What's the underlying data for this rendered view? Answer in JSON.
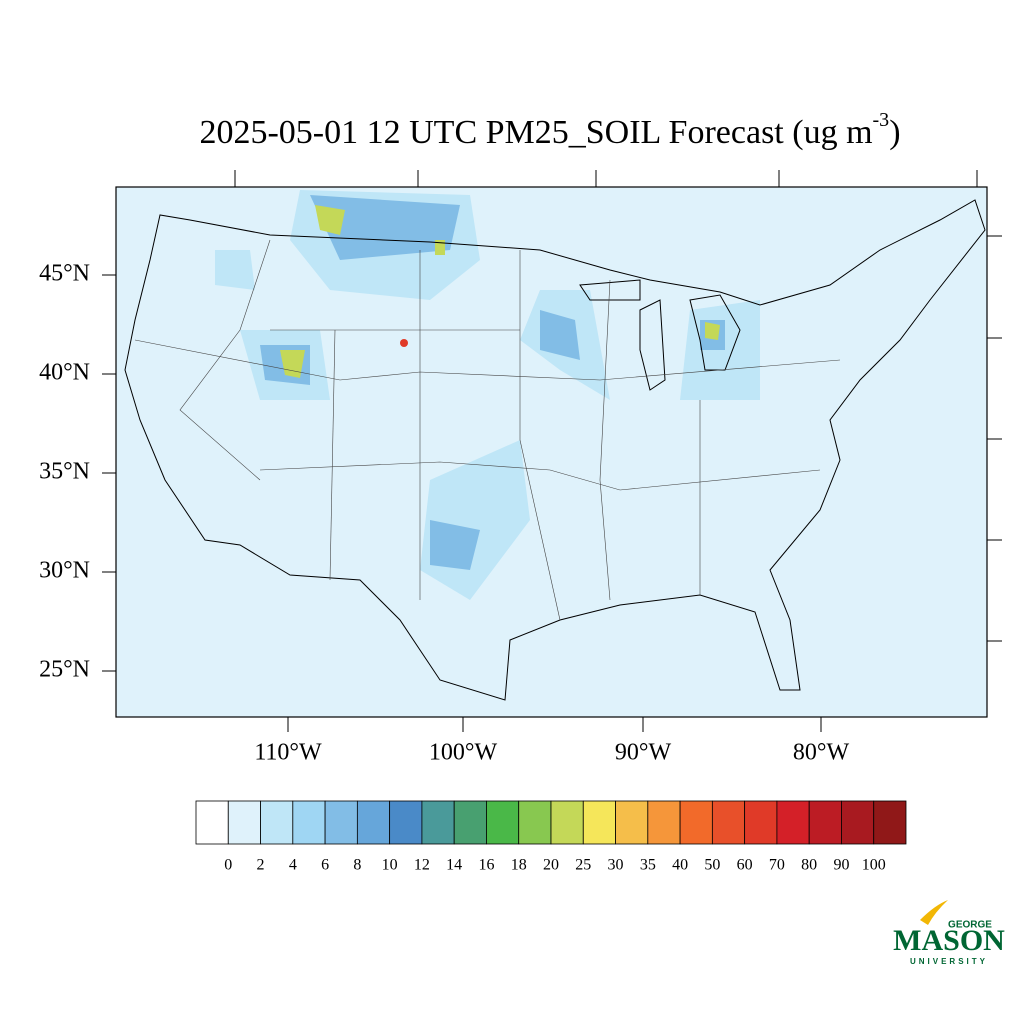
{
  "title": {
    "main": "2025-05-01 12 UTC PM25_SOIL Forecast (ug m",
    "superscript": "-3",
    "close": ")"
  },
  "lat_labels": [
    "45°N",
    "40°N",
    "35°N",
    "30°N",
    "25°N"
  ],
  "lon_labels": [
    "110°W",
    "100°W",
    "90°W",
    "80°W"
  ],
  "colorbar": {
    "labels": [
      "0",
      "2",
      "4",
      "6",
      "8",
      "10",
      "12",
      "14",
      "16",
      "18",
      "20",
      "25",
      "30",
      "35",
      "40",
      "50",
      "60",
      "70",
      "80",
      "90",
      "100"
    ],
    "colors": [
      "#ffffff",
      "#dff2fb",
      "#bfe6f7",
      "#9fd6f3",
      "#82bde6",
      "#66a6da",
      "#4a8ac8",
      "#4a9a9a",
      "#48a070",
      "#4ab848",
      "#88c850",
      "#c4d858",
      "#f5e65a",
      "#f5be4a",
      "#f5963a",
      "#f26a2a",
      "#e8502a",
      "#e03a28",
      "#d42028",
      "#bc1c24",
      "#a81a20",
      "#901818"
    ]
  },
  "logo": {
    "top": "GEORGE",
    "main": "MASON",
    "bottom": "UNIVERSITY"
  }
}
